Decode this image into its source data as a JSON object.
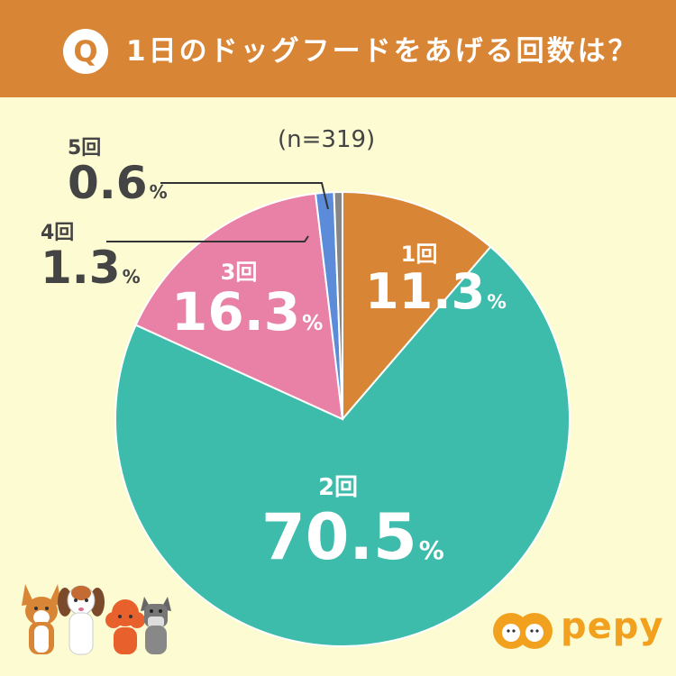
{
  "header": {
    "q_letter": "Q",
    "title": "1日のドッグフードをあげる回数は？"
  },
  "sample_label": "(n=319)",
  "brand": {
    "logo_text": "pepy"
  },
  "colors": {
    "header_bg": "#d98536",
    "page_bg": "#fdfbd2",
    "slice_1": "#d98536",
    "slice_2": "#3dbcab",
    "slice_3": "#e881a5",
    "slice_4": "#5b8bd9",
    "slice_5": "#868686"
  },
  "chart_data": {
    "type": "pie",
    "title": "1日のドッグフードをあげる回数は？",
    "subtitle": "(n=319)",
    "categories": [
      "1回",
      "2回",
      "3回",
      "4回",
      "5回"
    ],
    "values": [
      11.3,
      70.5,
      16.3,
      1.3,
      0.6
    ],
    "unit": "%",
    "labels": [
      {
        "category": "1回",
        "value": "11.3",
        "unit": "%"
      },
      {
        "category": "2回",
        "value": "70.5",
        "unit": "%"
      },
      {
        "category": "3回",
        "value": "16.3",
        "unit": "%"
      },
      {
        "category": "4回",
        "value": "1.3",
        "unit": "%"
      },
      {
        "category": "5回",
        "value": "0.6",
        "unit": "%"
      }
    ],
    "start_angle": "top",
    "direction": "clockwise"
  }
}
